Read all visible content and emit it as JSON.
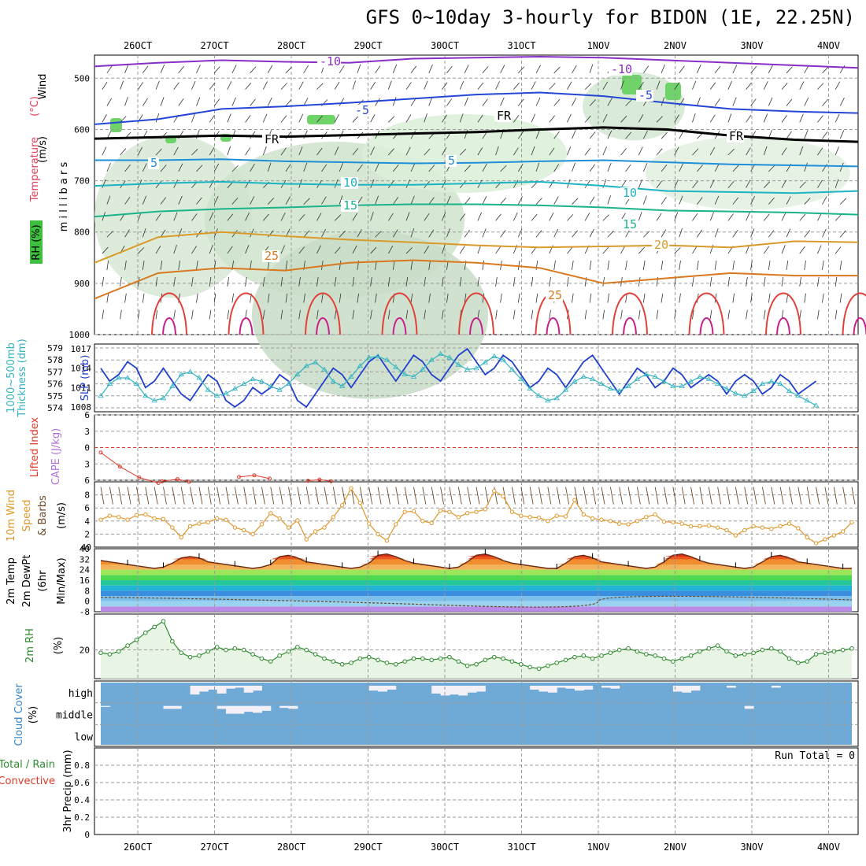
{
  "title": "GFS 0~10day 3-hourly for BIDON (1E, 22.25N)",
  "x_labels": [
    "26OCT",
    "27OCT",
    "28OCT",
    "29OCT",
    "30OCT",
    "31OCT",
    "1NOV",
    "2NOV",
    "3NOV",
    "4NOV"
  ],
  "run_total": "Run Total = 0",
  "colors": {
    "grid": "#9a9a9a",
    "sky": "#6fa9d6",
    "slp": "#1f3fcc",
    "thk": "#33b3bf",
    "temp2m": "#c8501e",
    "rh2m": "#2e8b2e",
    "wind10": "#e0972b",
    "precip_rain": "#2e8b2e",
    "precip_conv": "#e03a2a"
  },
  "chart_data": [
    {
      "type": "line",
      "name": "upper",
      "ylabel_parts": [
        "Wind",
        "(m/s)",
        "Temperature",
        "(°C)",
        "RH",
        "(%)",
        "m i l l i b a r s"
      ],
      "y_ticks": [
        500,
        600,
        700,
        800,
        900,
        1000
      ],
      "ylim": [
        455,
        1000
      ],
      "temperature_contours": [
        {
          "label": "-10",
          "levels": [
            477,
            470,
            465,
            468,
            470,
            462,
            460,
            458,
            460,
            465,
            470,
            475,
            480
          ]
        },
        {
          "label": "-5",
          "levels": [
            590,
            580,
            560,
            555,
            548,
            540,
            532,
            528,
            535,
            548,
            560,
            565,
            568
          ]
        },
        {
          "label": "FR",
          "levels": [
            618,
            615,
            612,
            614,
            611,
            608,
            605,
            600,
            596,
            600,
            612,
            620,
            624
          ]
        },
        {
          "label": "5",
          "levels": [
            660,
            660,
            658,
            662,
            664,
            666,
            665,
            662,
            660,
            664,
            668,
            670,
            672
          ]
        },
        {
          "label": "10",
          "levels": [
            710,
            705,
            702,
            706,
            708,
            708,
            705,
            702,
            710,
            720,
            722,
            724,
            720
          ]
        },
        {
          "label": "15",
          "levels": [
            770,
            760,
            755,
            752,
            748,
            746,
            746,
            748,
            752,
            758,
            760,
            762,
            766
          ]
        },
        {
          "label": "20",
          "levels": [
            860,
            810,
            800,
            808,
            815,
            820,
            826,
            830,
            828,
            826,
            830,
            818,
            820
          ]
        },
        {
          "label": "25",
          "levels": [
            930,
            880,
            870,
            875,
            860,
            855,
            860,
            870,
            900,
            890,
            880,
            885,
            885
          ]
        }
      ],
      "contour_labels": [
        "-10",
        "-10",
        "-5",
        "-5",
        "FR",
        "FR",
        "FR",
        "5",
        "5",
        "10",
        "10",
        "15",
        "15",
        "20",
        "25",
        "25"
      ]
    },
    {
      "type": "line",
      "name": "thickness-slp",
      "ylabel_left": "1000~500mb Thickness (dm)",
      "ylabel_right": "SLP (mb)",
      "thk_ticks": [
        574,
        575,
        576,
        577,
        578,
        579
      ],
      "slp_ticks": [
        1008,
        1011,
        1014,
        1017
      ],
      "series": [
        {
          "name": "SLP",
          "values": [
            1014,
            1012,
            1013,
            1015,
            1014,
            1011,
            1012,
            1014,
            1012,
            1010,
            1009,
            1011,
            1013,
            1012,
            1009,
            1008,
            1009,
            1011,
            1010,
            1011,
            1013,
            1012,
            1009,
            1008,
            1010,
            1012,
            1014,
            1013,
            1011,
            1013,
            1015,
            1016,
            1014,
            1012,
            1014,
            1016,
            1015,
            1013,
            1012,
            1014,
            1016,
            1017,
            1015,
            1013,
            1014,
            1016,
            1015,
            1013,
            1011,
            1012,
            1014,
            1013,
            1011,
            1013,
            1015,
            1016,
            1014,
            1012,
            1010,
            1012,
            1014,
            1013,
            1011,
            1012,
            1014,
            1013,
            1011,
            1012,
            1013,
            1012,
            1010,
            1012,
            1013,
            1012,
            1010,
            1011,
            1013,
            1012,
            1010,
            1011,
            1012
          ]
        },
        {
          "name": "Thickness",
          "values": [
            575,
            576,
            576.5,
            576.5,
            576,
            575,
            574.6,
            574.8,
            575.8,
            576.8,
            577,
            576.5,
            575.5,
            575,
            575.2,
            575.6,
            576,
            576.4,
            576.2,
            575.8,
            575.5,
            576,
            576.8,
            577.5,
            577.8,
            577.2,
            576.2,
            575.8,
            576.6,
            577.5,
            578.2,
            578.3,
            578,
            577.4,
            576.8,
            576.6,
            577.2,
            578,
            578.5,
            578.2,
            577.6,
            577.2,
            577.3,
            577.8,
            578.3,
            578,
            577.2,
            576.4,
            575.6,
            575,
            574.6,
            574.8,
            575.5,
            576.2,
            576.6,
            576.4,
            576,
            575.6,
            575.4,
            575.8,
            576.4,
            576.8,
            576.6,
            576.2,
            575.8,
            575.8,
            576.2,
            576.6,
            576.4,
            576,
            575.6,
            575.2,
            575,
            575.4,
            576,
            576.2,
            576,
            575.4,
            575,
            574.6,
            574.2
          ]
        }
      ]
    },
    {
      "type": "line",
      "name": "cape-li",
      "ylabel_left": "Lifted Index",
      "ylabel_right": "CAPE (J/kg)",
      "li_ticks": [
        -6,
        -3,
        0,
        3,
        6
      ],
      "series": [
        {
          "name": "Lifted Index",
          "x_days": [
            0,
            0.25,
            0.5,
            0.75
          ],
          "values": [
            0.9,
            3.5,
            5.5,
            6.5
          ]
        },
        {
          "name": "Lifted Index b",
          "x_days": [
            0.8,
            1.0,
            1.15
          ],
          "values": [
            6.2,
            5.8,
            6.3
          ]
        },
        {
          "name": "Lifted Index c",
          "x_days": [
            1.8,
            2.0,
            2.2
          ],
          "values": [
            5.4,
            5.1,
            5.7
          ]
        },
        {
          "name": "Lifted Index d",
          "x_days": [
            2.7,
            2.85,
            3.0
          ],
          "values": [
            6.1,
            5.9,
            6.2
          ]
        }
      ]
    },
    {
      "type": "line",
      "name": "wind10",
      "ylabel": "10m Wind Speed & Barbs (m/s)",
      "y_ticks": [
        2,
        4,
        6,
        8
      ],
      "ylim": [
        0,
        10
      ],
      "values": [
        4.2,
        4.8,
        4.6,
        4.2,
        4.9,
        5.0,
        4.4,
        4.3,
        3.0,
        1.5,
        3.2,
        3.6,
        3.8,
        4.4,
        4.2,
        3.0,
        2.6,
        2.0,
        3.5,
        5.2,
        4.4,
        3.0,
        4.1,
        1.2,
        2.4,
        3.0,
        4.6,
        6.4,
        9.0,
        6.8,
        3.6,
        2.0,
        1.0,
        3.5,
        5.4,
        5.5,
        4.0,
        3.7,
        5.6,
        5.4,
        4.6,
        5.2,
        5.4,
        5.8,
        8.6,
        7.8,
        5.4,
        4.8,
        4.6,
        4.5,
        4.0,
        4.8,
        4.7,
        7.2,
        5.0,
        4.4,
        4.2,
        4.0,
        3.6,
        3.5,
        4.0,
        4.6,
        5.0,
        3.9,
        3.8,
        3.6,
        3.2,
        3.2,
        3.3,
        3.0,
        2.6,
        1.8,
        2.6,
        3.2,
        3.0,
        2.8,
        3.2,
        3.6,
        2.9,
        1.5,
        0.6,
        1.2,
        1.8,
        2.4,
        3.8
      ]
    },
    {
      "type": "area",
      "name": "temp2m",
      "ylabel": "2m Temp 2m DewPt (6hr Min/Max) (°C)",
      "y_ticks": [
        -8,
        0,
        8,
        16,
        24,
        32,
        40
      ],
      "ylim": [
        -8,
        40
      ],
      "values": [
        31,
        30,
        29,
        28,
        27,
        26,
        25,
        26,
        29,
        33,
        34,
        33,
        30,
        29,
        28,
        27,
        26,
        25,
        26,
        28,
        34,
        35,
        33,
        30,
        29,
        28,
        27,
        26,
        25,
        26,
        29,
        35,
        36,
        34,
        31,
        29,
        28,
        27,
        26,
        25,
        26,
        30,
        35,
        36,
        34,
        31,
        29,
        28,
        27,
        26,
        25,
        25,
        29,
        34,
        35,
        33,
        30,
        29,
        28,
        27,
        26,
        25,
        26,
        30,
        35,
        36,
        34,
        31,
        29,
        28,
        27,
        26,
        25,
        26,
        30,
        34,
        35,
        33,
        30,
        29,
        28,
        27,
        26,
        25,
        25
      ]
    },
    {
      "type": "area",
      "name": "rh2m",
      "ylabel": "2m RH (%)",
      "y_ticks": [
        20
      ],
      "ylim": [
        0,
        45
      ],
      "values": [
        18,
        17,
        19,
        23,
        27,
        32,
        36,
        40,
        26,
        18,
        15,
        16,
        19,
        22,
        20,
        21,
        20,
        17,
        14,
        12,
        16,
        19,
        22,
        20,
        17,
        14,
        12,
        10,
        11,
        14,
        15,
        13,
        11,
        10,
        12,
        14,
        14,
        13,
        14,
        15,
        12,
        9,
        10,
        13,
        15,
        14,
        12,
        10,
        8,
        7,
        9,
        11,
        13,
        15,
        16,
        14,
        16,
        18,
        20,
        21,
        19,
        17,
        16,
        14,
        12,
        14,
        16,
        19,
        21,
        23,
        19,
        16,
        17,
        18,
        20,
        21,
        19,
        14,
        11,
        12,
        17,
        18,
        19,
        20,
        21
      ]
    },
    {
      "type": "bar",
      "name": "cloud-cover",
      "ylabel": "Cloud Cover (%)",
      "row_labels": [
        "high",
        "middle",
        "low"
      ],
      "high": [
        0,
        0,
        0,
        0,
        0,
        0,
        0,
        0,
        0,
        0,
        90,
        60,
        40,
        80,
        30,
        20,
        70,
        50,
        0,
        0,
        0,
        0,
        0,
        0,
        0,
        0,
        0,
        0,
        0,
        0,
        50,
        60,
        40,
        0,
        0,
        0,
        0,
        80,
        100,
        90,
        100,
        70,
        60,
        0,
        0,
        0,
        0,
        0,
        40,
        60,
        70,
        20,
        30,
        50,
        40,
        0,
        20,
        30,
        0,
        0,
        0,
        0,
        0,
        0,
        60,
        70,
        50,
        0,
        0,
        0,
        20,
        0,
        0,
        0,
        0,
        20,
        0,
        0,
        0,
        0,
        0,
        0,
        0,
        0,
        0
      ],
      "middle": [
        10,
        0,
        0,
        0,
        0,
        0,
        0,
        30,
        30,
        0,
        0,
        0,
        0,
        30,
        80,
        80,
        60,
        70,
        50,
        0,
        20,
        30,
        0,
        0,
        0,
        0,
        0,
        0,
        0,
        0,
        0,
        0,
        0,
        0,
        0,
        0,
        0,
        0,
        0,
        0,
        0,
        0,
        0,
        0,
        0,
        0,
        0,
        0,
        0,
        0,
        0,
        0,
        0,
        0,
        0,
        0,
        0,
        0,
        0,
        0,
        0,
        0,
        0,
        0,
        0,
        0,
        0,
        0,
        0,
        0,
        0,
        0,
        30,
        0,
        0,
        0,
        0,
        0,
        0,
        0,
        0,
        0,
        0,
        0,
        0
      ]
    },
    {
      "type": "bar",
      "name": "precip",
      "ylabel_left": "3hr Precip (mm)",
      "ylabel_parts": [
        "Total / Rain",
        "Convective"
      ],
      "y_ticks": [
        0,
        0.2,
        0.4,
        0.6,
        0.8
      ],
      "ylim": [
        0,
        1
      ],
      "values": []
    }
  ]
}
